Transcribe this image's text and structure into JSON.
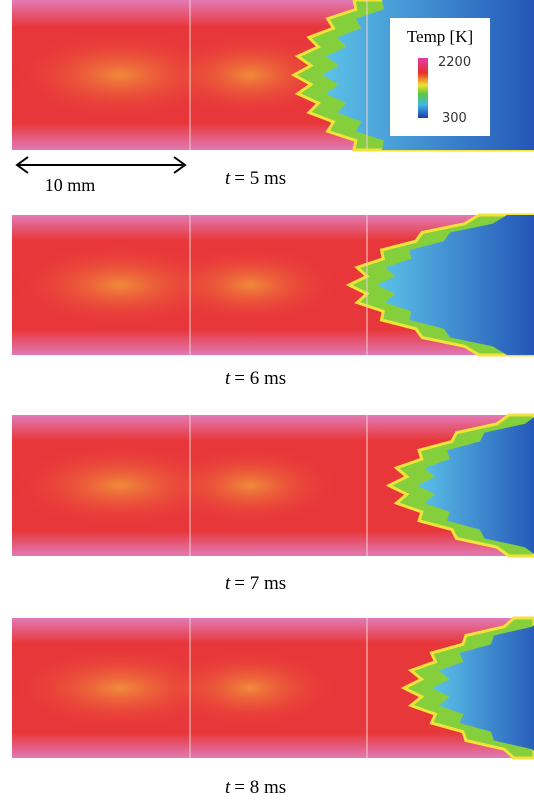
{
  "legend": {
    "title": "Temp [K]",
    "max_label": "2200",
    "min_label": "300"
  },
  "scale_bar": {
    "label": "10 mm"
  },
  "panels": [
    {
      "label_var": "t",
      "label_rest": "= 5 ms"
    },
    {
      "label_var": "t",
      "label_rest": "= 6 ms"
    },
    {
      "label_var": "t",
      "label_rest": "= 7 ms"
    },
    {
      "label_var": "t",
      "label_rest": "= 8 ms"
    }
  ]
}
